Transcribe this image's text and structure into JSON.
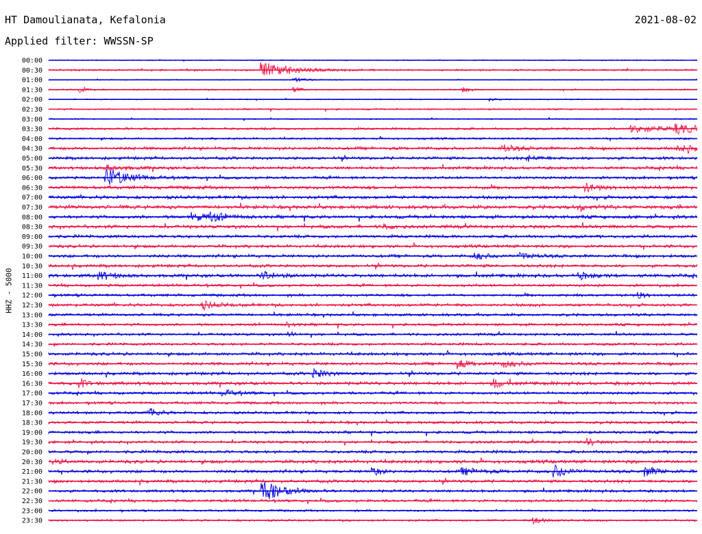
{
  "header": {
    "station": "HT Damoulianata, Kefalonia",
    "date": "2021-08-02",
    "filter": "Applied filter: WWSSN-SP"
  },
  "colors": {
    "even": "#0000dd",
    "odd": "#ee1144"
  },
  "chart_data": {
    "type": "line",
    "title": "HT Damoulianata, Kefalonia",
    "ylabel": "HHZ - 5000",
    "row_labels": [
      "00:00",
      "00:30",
      "01:00",
      "01:30",
      "02:00",
      "02:30",
      "03:00",
      "03:30",
      "04:00",
      "04:30",
      "05:00",
      "05:30",
      "06:00",
      "06:30",
      "07:00",
      "07:30",
      "08:00",
      "08:30",
      "09:00",
      "09:30",
      "10:00",
      "10:30",
      "11:00",
      "11:30",
      "12:00",
      "12:30",
      "13:00",
      "13:30",
      "14:00",
      "14:30",
      "15:00",
      "15:30",
      "16:00",
      "16:30",
      "17:00",
      "17:30",
      "18:00",
      "18:30",
      "19:00",
      "19:30",
      "20:00",
      "20:30",
      "21:00",
      "21:30",
      "22:00",
      "22:30",
      "23:00",
      "23:30"
    ],
    "noise": [
      0.6,
      1.0,
      0.5,
      0.8,
      0.6,
      0.9,
      0.7,
      1.4,
      1.2,
      1.8,
      1.8,
      1.8,
      1.6,
      2.0,
      2.0,
      2.2,
      2.0,
      2.0,
      1.8,
      1.8,
      1.8,
      1.8,
      2.0,
      1.6,
      1.6,
      1.8,
      1.6,
      1.6,
      1.5,
      1.6,
      1.8,
      1.8,
      1.8,
      2.0,
      1.6,
      1.6,
      1.6,
      1.6,
      1.6,
      1.6,
      1.8,
      2.0,
      1.8,
      1.8,
      1.6,
      1.6,
      1.2,
      1.2
    ],
    "events": [
      {
        "row": 1,
        "t": 0.33,
        "amp": 12,
        "dur": 0.04
      },
      {
        "row": 2,
        "t": 0.38,
        "amp": 3,
        "dur": 0.02
      },
      {
        "row": 3,
        "t": 0.05,
        "amp": 4,
        "dur": 0.01
      },
      {
        "row": 3,
        "t": 0.38,
        "amp": 3,
        "dur": 0.01
      },
      {
        "row": 3,
        "t": 0.64,
        "amp": 3,
        "dur": 0.01
      },
      {
        "row": 4,
        "t": 0.68,
        "amp": 2,
        "dur": 0.01
      },
      {
        "row": 7,
        "t": 0.9,
        "amp": 5,
        "dur": 0.05
      },
      {
        "row": 7,
        "t": 0.97,
        "amp": 5,
        "dur": 0.04
      },
      {
        "row": 9,
        "t": 0.7,
        "amp": 5,
        "dur": 0.02
      },
      {
        "row": 9,
        "t": 0.97,
        "amp": 4,
        "dur": 0.03
      },
      {
        "row": 10,
        "t": 0.74,
        "amp": 3,
        "dur": 0.02
      },
      {
        "row": 11,
        "t": 0.09,
        "amp": 4,
        "dur": 0.03
      },
      {
        "row": 12,
        "t": 0.09,
        "amp": 14,
        "dur": 0.03
      },
      {
        "row": 13,
        "t": 0.83,
        "amp": 5,
        "dur": 0.02
      },
      {
        "row": 15,
        "t": 0.82,
        "amp": 4,
        "dur": 0.01
      },
      {
        "row": 16,
        "t": 0.22,
        "amp": 6,
        "dur": 0.02
      },
      {
        "row": 16,
        "t": 0.25,
        "amp": 6,
        "dur": 0.02
      },
      {
        "row": 17,
        "t": 0.52,
        "amp": 3,
        "dur": 0.01
      },
      {
        "row": 20,
        "t": 0.66,
        "amp": 4,
        "dur": 0.02
      },
      {
        "row": 20,
        "t": 0.73,
        "amp": 4,
        "dur": 0.02
      },
      {
        "row": 22,
        "t": 0.08,
        "amp": 5,
        "dur": 0.02
      },
      {
        "row": 22,
        "t": 0.33,
        "amp": 6,
        "dur": 0.02
      },
      {
        "row": 22,
        "t": 0.82,
        "amp": 4,
        "dur": 0.02
      },
      {
        "row": 24,
        "t": 0.91,
        "amp": 5,
        "dur": 0.01
      },
      {
        "row": 25,
        "t": 0.24,
        "amp": 5,
        "dur": 0.02
      },
      {
        "row": 27,
        "t": 0.37,
        "amp": 3,
        "dur": 0.01
      },
      {
        "row": 28,
        "t": 0.37,
        "amp": 3,
        "dur": 0.01
      },
      {
        "row": 31,
        "t": 0.63,
        "amp": 6,
        "dur": 0.02
      },
      {
        "row": 31,
        "t": 0.7,
        "amp": 4,
        "dur": 0.03
      },
      {
        "row": 32,
        "t": 0.41,
        "amp": 6,
        "dur": 0.02
      },
      {
        "row": 33,
        "t": 0.05,
        "amp": 5,
        "dur": 0.01
      },
      {
        "row": 33,
        "t": 0.69,
        "amp": 6,
        "dur": 0.01
      },
      {
        "row": 34,
        "t": 0.27,
        "amp": 4,
        "dur": 0.02
      },
      {
        "row": 36,
        "t": 0.16,
        "amp": 7,
        "dur": 0.01
      },
      {
        "row": 39,
        "t": 0.83,
        "amp": 6,
        "dur": 0.01
      },
      {
        "row": 41,
        "t": 0.01,
        "amp": 3,
        "dur": 0.01
      },
      {
        "row": 42,
        "t": 0.5,
        "amp": 7,
        "dur": 0.01
      },
      {
        "row": 42,
        "t": 0.64,
        "amp": 4,
        "dur": 0.03
      },
      {
        "row": 42,
        "t": 0.78,
        "amp": 9,
        "dur": 0.02
      },
      {
        "row": 42,
        "t": 0.92,
        "amp": 7,
        "dur": 0.02
      },
      {
        "row": 44,
        "t": 0.33,
        "amp": 15,
        "dur": 0.03
      },
      {
        "row": 47,
        "t": 0.75,
        "amp": 4,
        "dur": 0.02
      }
    ]
  }
}
